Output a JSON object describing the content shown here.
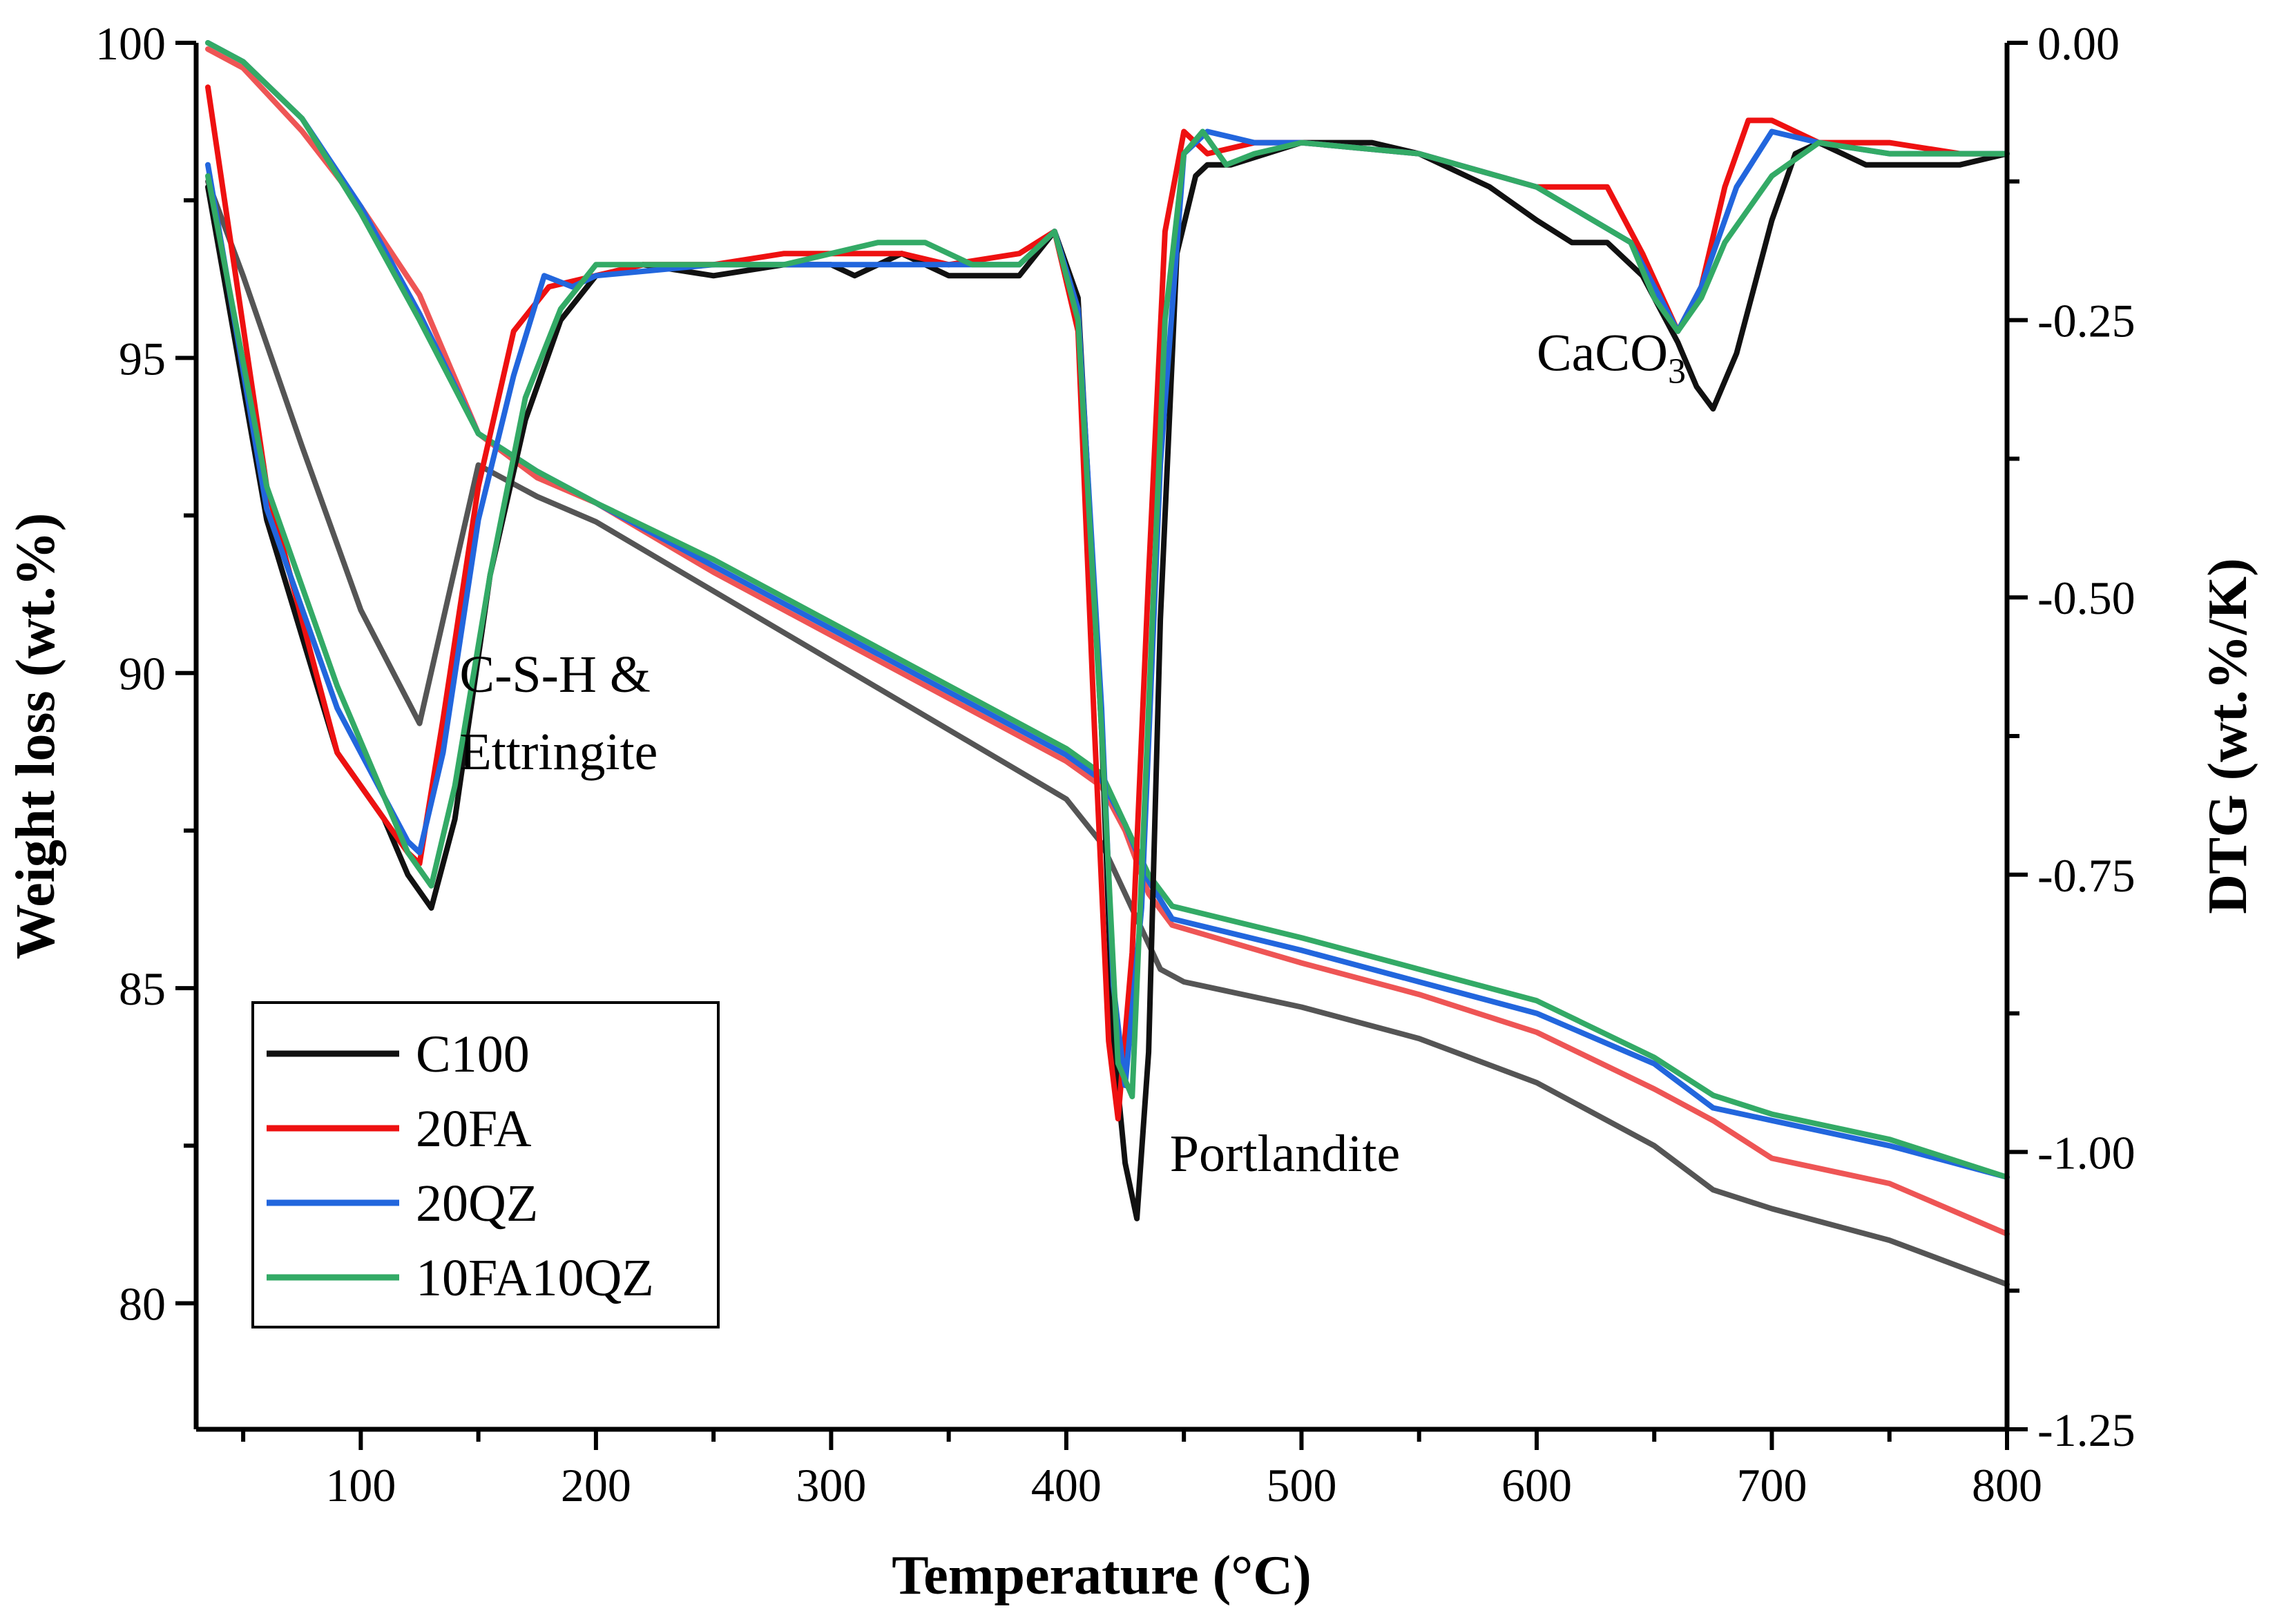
{
  "chart_data": {
    "type": "line",
    "title": "",
    "xlabel": "Temperature (°C)",
    "ylabel": "Weight loss (wt.%)",
    "y2label": "DTG (wt.%/K)",
    "xlim": [
      30,
      800
    ],
    "ylim": [
      78,
      100
    ],
    "y2lim": [
      -1.25,
      0.0
    ],
    "x_ticks": [
      100,
      200,
      300,
      400,
      500,
      600,
      700,
      800
    ],
    "x_minor_step": 50,
    "y_ticks": [
      80,
      85,
      90,
      95,
      100
    ],
    "y2_ticks": [
      -1.25,
      -1.0,
      -0.75,
      -0.5,
      -0.25,
      0.0
    ],
    "y2_tick_labels": [
      "-1.25",
      "-1.00",
      "-0.75",
      "-0.50",
      "-0.25",
      "0.00"
    ],
    "annotations": [
      {
        "id": "csh",
        "lines": [
          "C-S-H &",
          "Ettringite"
        ],
        "x": 142,
        "y": 89.7
      },
      {
        "id": "portlandite",
        "lines": [
          "Portlandite"
        ],
        "x": 444,
        "y": 82.1
      },
      {
        "id": "caco3",
        "text": "CaCO",
        "sub": "3",
        "x": 600,
        "y": 94.8
      }
    ],
    "legend": {
      "position": "bottom-left",
      "entries": [
        {
          "name": "C100",
          "color": "#111111"
        },
        {
          "name": "20FA",
          "color": "#ee1111"
        },
        {
          "name": "20QZ",
          "color": "#2266dd"
        },
        {
          "name": "10FA10QZ",
          "color": "#33aa66"
        }
      ]
    },
    "series": [
      {
        "name": "C100",
        "kind": "TG",
        "axis": "left",
        "color": "#555555",
        "x": [
          35,
          50,
          75,
          100,
          125,
          150,
          175,
          200,
          250,
          300,
          350,
          400,
          415,
          425,
          435,
          440,
          450,
          500,
          550,
          600,
          650,
          675,
          700,
          750,
          800
        ],
        "y": [
          97.8,
          96.3,
          93.6,
          91.0,
          89.2,
          93.3,
          92.8,
          92.4,
          91.3,
          90.2,
          89.1,
          88.0,
          87.3,
          86.5,
          85.7,
          85.3,
          85.1,
          84.7,
          84.2,
          83.5,
          82.5,
          81.8,
          81.5,
          81.0,
          80.3
        ]
      },
      {
        "name": "20FA",
        "kind": "TG",
        "axis": "left",
        "color": "#ee5555",
        "x": [
          35,
          50,
          75,
          100,
          125,
          150,
          175,
          200,
          250,
          300,
          350,
          400,
          415,
          425,
          435,
          445,
          500,
          550,
          600,
          650,
          675,
          700,
          750,
          800
        ],
        "y": [
          99.9,
          99.6,
          98.6,
          97.4,
          96.0,
          93.8,
          93.1,
          92.7,
          91.6,
          90.6,
          89.6,
          88.6,
          88.2,
          87.5,
          86.5,
          86.0,
          85.4,
          84.9,
          84.3,
          83.4,
          82.9,
          82.3,
          81.9,
          81.1
        ]
      },
      {
        "name": "20QZ",
        "kind": "TG",
        "axis": "left",
        "color": "#2266dd",
        "x": [
          35,
          50,
          75,
          100,
          125,
          150,
          175,
          200,
          250,
          300,
          350,
          400,
          415,
          425,
          435,
          445,
          500,
          550,
          600,
          650,
          675,
          700,
          750,
          800
        ],
        "y": [
          100.0,
          99.7,
          98.8,
          97.4,
          95.7,
          93.8,
          93.2,
          92.7,
          91.7,
          90.7,
          89.7,
          88.7,
          88.3,
          87.6,
          86.7,
          86.1,
          85.6,
          85.1,
          84.6,
          83.8,
          83.1,
          82.9,
          82.5,
          82.0
        ]
      },
      {
        "name": "10FA10QZ",
        "kind": "TG",
        "axis": "left",
        "color": "#33aa66",
        "x": [
          35,
          50,
          75,
          100,
          125,
          150,
          175,
          200,
          250,
          300,
          350,
          400,
          415,
          425,
          435,
          445,
          500,
          550,
          600,
          650,
          675,
          700,
          750,
          800
        ],
        "y": [
          100.0,
          99.7,
          98.8,
          97.3,
          95.6,
          93.8,
          93.2,
          92.7,
          91.8,
          90.8,
          89.8,
          88.8,
          88.4,
          87.6,
          86.8,
          86.3,
          85.8,
          85.3,
          84.8,
          83.9,
          83.3,
          83.0,
          82.6,
          82.0
        ]
      },
      {
        "name": "C100",
        "kind": "DTG",
        "axis": "right",
        "color": "#111111",
        "x": [
          35,
          60,
          90,
          110,
          120,
          130,
          140,
          155,
          170,
          185,
          200,
          220,
          250,
          280,
          300,
          310,
          330,
          350,
          380,
          395,
          405,
          415,
          420,
          425,
          430,
          435,
          440,
          447,
          455,
          460,
          470,
          500,
          530,
          550,
          580,
          600,
          615,
          630,
          645,
          660,
          668,
          675,
          685,
          700,
          710,
          720,
          740,
          760,
          780,
          800
        ],
        "y": [
          -0.13,
          -0.43,
          -0.64,
          -0.7,
          -0.75,
          -0.78,
          -0.7,
          -0.48,
          -0.34,
          -0.25,
          -0.21,
          -0.2,
          -0.21,
          -0.2,
          -0.2,
          -0.21,
          -0.19,
          -0.21,
          -0.21,
          -0.17,
          -0.23,
          -0.62,
          -0.9,
          -1.01,
          -1.06,
          -0.91,
          -0.52,
          -0.19,
          -0.12,
          -0.11,
          -0.11,
          -0.09,
          -0.09,
          -0.1,
          -0.13,
          -0.16,
          -0.18,
          -0.18,
          -0.21,
          -0.27,
          -0.31,
          -0.33,
          -0.28,
          -0.16,
          -0.1,
          -0.09,
          -0.11,
          -0.11,
          -0.11,
          -0.1
        ]
      },
      {
        "name": "20FA",
        "kind": "DTG",
        "axis": "right",
        "color": "#ee1111",
        "x": [
          35,
          60,
          90,
          110,
          120,
          125,
          135,
          150,
          165,
          180,
          200,
          220,
          250,
          280,
          300,
          330,
          350,
          380,
          395,
          405,
          412,
          418,
          422,
          428,
          435,
          442,
          450,
          460,
          480,
          500,
          550,
          600,
          630,
          645,
          660,
          670,
          680,
          690,
          700,
          720,
          750,
          780,
          800
        ],
        "y": [
          -0.04,
          -0.4,
          -0.64,
          -0.7,
          -0.73,
          -0.74,
          -0.61,
          -0.4,
          -0.26,
          -0.22,
          -0.21,
          -0.2,
          -0.2,
          -0.19,
          -0.19,
          -0.19,
          -0.2,
          -0.19,
          -0.17,
          -0.26,
          -0.62,
          -0.9,
          -0.97,
          -0.82,
          -0.48,
          -0.17,
          -0.08,
          -0.1,
          -0.09,
          -0.09,
          -0.1,
          -0.13,
          -0.13,
          -0.19,
          -0.26,
          -0.22,
          -0.13,
          -0.07,
          -0.07,
          -0.09,
          -0.09,
          -0.1,
          -0.1
        ]
      },
      {
        "name": "20QZ",
        "kind": "DTG",
        "axis": "right",
        "color": "#2266dd",
        "x": [
          35,
          60,
          90,
          110,
          120,
          125,
          135,
          150,
          165,
          178,
          190,
          200,
          250,
          300,
          350,
          380,
          395,
          405,
          415,
          420,
          425,
          432,
          440,
          450,
          460,
          480,
          500,
          550,
          600,
          640,
          650,
          660,
          670,
          685,
          700,
          720,
          750,
          800
        ],
        "y": [
          -0.11,
          -0.42,
          -0.6,
          -0.68,
          -0.72,
          -0.73,
          -0.64,
          -0.43,
          -0.3,
          -0.21,
          -0.22,
          -0.21,
          -0.2,
          -0.2,
          -0.2,
          -0.2,
          -0.17,
          -0.24,
          -0.6,
          -0.85,
          -0.94,
          -0.78,
          -0.38,
          -0.1,
          -0.08,
          -0.09,
          -0.09,
          -0.1,
          -0.13,
          -0.18,
          -0.22,
          -0.26,
          -0.22,
          -0.13,
          -0.08,
          -0.09,
          -0.1,
          -0.1
        ]
      },
      {
        "name": "10FA10QZ",
        "kind": "DTG",
        "axis": "right",
        "color": "#33aa66",
        "x": [
          35,
          60,
          90,
          110,
          120,
          130,
          140,
          155,
          170,
          185,
          200,
          220,
          250,
          280,
          300,
          320,
          340,
          360,
          380,
          395,
          405,
          415,
          422,
          428,
          435,
          442,
          450,
          458,
          468,
          480,
          500,
          550,
          600,
          640,
          650,
          660,
          670,
          680,
          690,
          700,
          720,
          750,
          800
        ],
        "y": [
          -0.12,
          -0.4,
          -0.58,
          -0.68,
          -0.73,
          -0.76,
          -0.67,
          -0.48,
          -0.32,
          -0.24,
          -0.2,
          -0.2,
          -0.2,
          -0.2,
          -0.19,
          -0.18,
          -0.18,
          -0.2,
          -0.2,
          -0.17,
          -0.25,
          -0.62,
          -0.92,
          -0.95,
          -0.6,
          -0.25,
          -0.1,
          -0.08,
          -0.11,
          -0.1,
          -0.09,
          -0.1,
          -0.13,
          -0.18,
          -0.23,
          -0.26,
          -0.23,
          -0.18,
          -0.15,
          -0.12,
          -0.09,
          -0.1,
          -0.1
        ]
      }
    ]
  }
}
